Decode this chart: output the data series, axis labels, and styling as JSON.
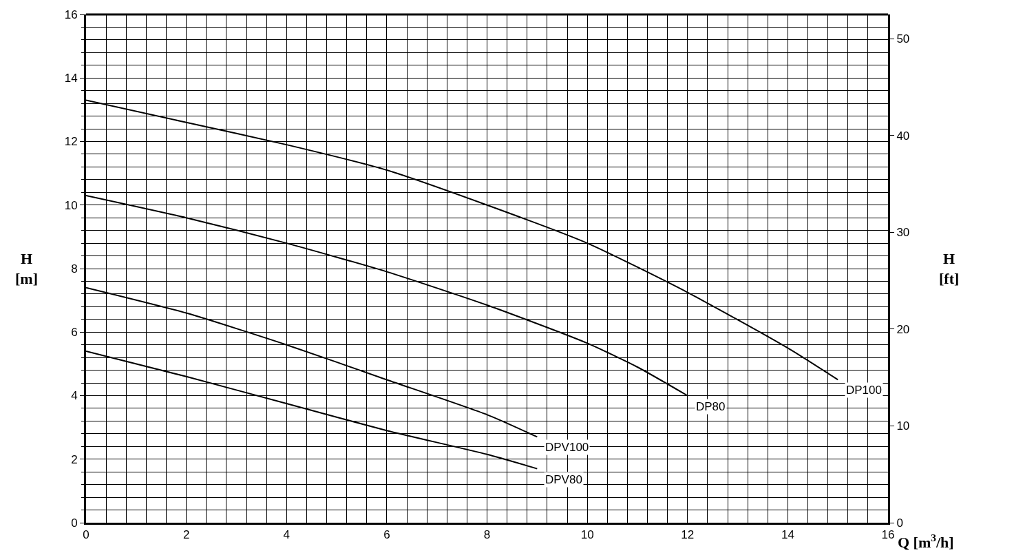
{
  "chart_data": {
    "type": "line",
    "xlabel": "Q [m$^{3}$/h]",
    "ylabel": "H\n[m]",
    "y2label": "H\n[ft]",
    "xlim": [
      0,
      16
    ],
    "ylim": [
      0,
      16
    ],
    "y2lim": [
      0,
      52.49
    ],
    "xticks": [
      0,
      {
        "value": 0.4,
        "label": null
      },
      {
        "value": 0.8,
        "label": null
      },
      {
        "value": 1.2,
        "label": null
      },
      {
        "value": 1.6,
        "label": null
      },
      2,
      {
        "value": 2.4,
        "label": null
      },
      {
        "value": 2.8,
        "label": null
      },
      {
        "value": 3.2,
        "label": null
      },
      {
        "value": 3.6,
        "label": null
      },
      4,
      {
        "value": 4.4,
        "label": null
      },
      {
        "value": 4.8,
        "label": null
      },
      {
        "value": 5.2,
        "label": null
      },
      {
        "value": 5.6,
        "label": null
      },
      6,
      {
        "value": 6.4,
        "label": null
      },
      {
        "value": 6.8,
        "label": null
      },
      {
        "value": 7.2,
        "label": null
      },
      {
        "value": 7.6,
        "label": null
      },
      8,
      {
        "value": 8.4,
        "label": null
      },
      {
        "value": 8.8,
        "label": null
      },
      {
        "value": 9.2,
        "label": null
      },
      {
        "value": 9.6,
        "label": null
      },
      10,
      {
        "value": 10.4,
        "label": null
      },
      {
        "value": 10.8,
        "label": null
      },
      {
        "value": 11.2,
        "label": null
      },
      {
        "value": 11.6,
        "label": null
      },
      12,
      {
        "value": 12.4,
        "label": null
      },
      {
        "value": 12.8,
        "label": null
      },
      {
        "value": 13.2,
        "label": null
      },
      {
        "value": 13.6,
        "label": null
      },
      14,
      {
        "value": 14.4,
        "label": null
      },
      {
        "value": 14.8,
        "label": null
      },
      {
        "value": 15.2,
        "label": null
      },
      {
        "value": 15.6,
        "label": null
      },
      16
    ],
    "yticks": [
      0,
      {
        "value": 0.4,
        "label": null
      },
      {
        "value": 0.8,
        "label": null
      },
      {
        "value": 1.2,
        "label": null
      },
      {
        "value": 1.6,
        "label": null
      },
      2,
      {
        "value": 2.4,
        "label": null
      },
      {
        "value": 2.8,
        "label": null
      },
      {
        "value": 3.2,
        "label": null
      },
      {
        "value": 3.6,
        "label": null
      },
      4,
      {
        "value": 4.4,
        "label": null
      },
      {
        "value": 4.8,
        "label": null
      },
      {
        "value": 5.2,
        "label": null
      },
      {
        "value": 5.6,
        "label": null
      },
      6,
      {
        "value": 6.4,
        "label": null
      },
      {
        "value": 6.8,
        "label": null
      },
      {
        "value": 7.2,
        "label": null
      },
      {
        "value": 7.6,
        "label": null
      },
      8,
      {
        "value": 8.4,
        "label": null
      },
      {
        "value": 8.8,
        "label": null
      },
      {
        "value": 9.2,
        "label": null
      },
      {
        "value": 9.6,
        "label": null
      },
      10,
      {
        "value": 10.4,
        "label": null
      },
      {
        "value": 10.8,
        "label": null
      },
      {
        "value": 11.2,
        "label": null
      },
      {
        "value": 11.6,
        "label": null
      },
      12,
      {
        "value": 12.4,
        "label": null
      },
      {
        "value": 12.8,
        "label": null
      },
      {
        "value": 13.2,
        "label": null
      },
      {
        "value": 13.6,
        "label": null
      },
      14,
      {
        "value": 14.4,
        "label": null
      },
      {
        "value": 14.8,
        "label": null
      },
      {
        "value": 15.2,
        "label": null
      },
      {
        "value": 15.6,
        "label": null
      },
      16
    ],
    "y2ticks": [
      0,
      10,
      20,
      30,
      40,
      50
    ],
    "grid": true,
    "legend": false,
    "marker": "none",
    "line_style": "solid",
    "series": [
      {
        "name": "DP100",
        "color": "#000000",
        "x": [
          0,
          2,
          4,
          6,
          8,
          10,
          12,
          14,
          15
        ],
        "values": [
          13.3,
          12.6,
          11.9,
          11.1,
          10.0,
          8.8,
          7.25,
          5.5,
          4.5
        ]
      },
      {
        "name": "DP80",
        "color": "#000000",
        "x": [
          0,
          2,
          4,
          6,
          8,
          10,
          11,
          12
        ],
        "values": [
          10.3,
          9.6,
          8.8,
          7.9,
          6.85,
          5.65,
          4.9,
          4.0
        ]
      },
      {
        "name": "DPV100",
        "color": "#000000",
        "x": [
          0,
          2,
          4,
          6,
          8,
          9
        ],
        "values": [
          7.4,
          6.6,
          5.6,
          4.5,
          3.4,
          2.7
        ]
      },
      {
        "name": "DPV80",
        "color": "#000000",
        "x": [
          0,
          2,
          4,
          6,
          8,
          9
        ],
        "values": [
          5.4,
          4.6,
          3.75,
          2.9,
          2.15,
          1.7
        ]
      }
    ]
  }
}
